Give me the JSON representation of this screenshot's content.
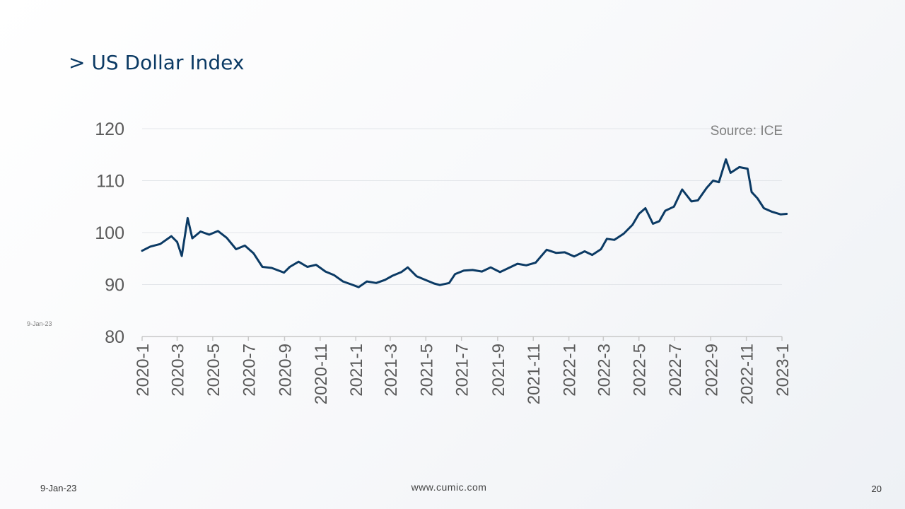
{
  "slide": {
    "title": "> US Dollar Index",
    "side_date": "9-Jan-23",
    "footer_date": "9-Jan-23",
    "footer_site": "www.cumic.com",
    "page_number": "20"
  },
  "chart_data": {
    "type": "line",
    "title": "",
    "xlabel": "",
    "ylabel": "",
    "source": "Source: ICE",
    "ylim": [
      80,
      120
    ],
    "yticks": [
      80,
      90,
      100,
      110,
      120
    ],
    "xticks": [
      "2020-1",
      "2020-3",
      "2020-5",
      "2020-7",
      "2020-9",
      "2020-11",
      "2021-1",
      "2021-3",
      "2021-5",
      "2021-7",
      "2021-9",
      "2021-11",
      "2022-1",
      "2022-3",
      "2022-5",
      "2022-7",
      "2022-9",
      "2022-11",
      "2023-1"
    ],
    "grid": true,
    "line_color": "#0b3a64",
    "series": [
      {
        "x": [
          "2020-01-01",
          "2020-01-15",
          "2020-02-01",
          "2020-02-20",
          "2020-03-01",
          "2020-03-09",
          "2020-03-19",
          "2020-03-27",
          "2020-04-10",
          "2020-04-25",
          "2020-05-10",
          "2020-05-25",
          "2020-06-10",
          "2020-06-25",
          "2020-07-10",
          "2020-07-25",
          "2020-08-10",
          "2020-08-31",
          "2020-09-10",
          "2020-09-25",
          "2020-10-10",
          "2020-10-25",
          "2020-11-10",
          "2020-11-25",
          "2020-12-10",
          "2020-12-25",
          "2021-01-06",
          "2021-01-20",
          "2021-02-05",
          "2021-02-20",
          "2021-03-05",
          "2021-03-20",
          "2021-03-31",
          "2021-04-15",
          "2021-04-30",
          "2021-05-15",
          "2021-05-25",
          "2021-06-10",
          "2021-06-20",
          "2021-07-05",
          "2021-07-20",
          "2021-08-05",
          "2021-08-20",
          "2021-09-05",
          "2021-09-20",
          "2021-10-05",
          "2021-10-20",
          "2021-11-05",
          "2021-11-24",
          "2021-12-10",
          "2021-12-25",
          "2022-01-10",
          "2022-01-28",
          "2022-02-10",
          "2022-02-25",
          "2022-03-07",
          "2022-03-20",
          "2022-04-05",
          "2022-04-20",
          "2022-05-01",
          "2022-05-12",
          "2022-05-25",
          "2022-06-05",
          "2022-06-15",
          "2022-06-30",
          "2022-07-14",
          "2022-07-30",
          "2022-08-10",
          "2022-08-25",
          "2022-09-05",
          "2022-09-15",
          "2022-09-27",
          "2022-10-05",
          "2022-10-20",
          "2022-11-03",
          "2022-11-10",
          "2022-11-20",
          "2022-12-01",
          "2022-12-15",
          "2022-12-30",
          "2023-01-09"
        ],
        "values": [
          96.5,
          97.3,
          97.8,
          99.3,
          98.2,
          95.5,
          102.8,
          98.9,
          100.2,
          99.6,
          100.3,
          99.0,
          96.8,
          97.5,
          96.0,
          93.4,
          93.2,
          92.3,
          93.4,
          94.4,
          93.4,
          93.8,
          92.5,
          91.8,
          90.6,
          90.0,
          89.5,
          90.6,
          90.3,
          90.9,
          91.7,
          92.4,
          93.3,
          91.6,
          90.9,
          90.2,
          89.9,
          90.3,
          92.0,
          92.7,
          92.8,
          92.5,
          93.3,
          92.4,
          93.2,
          94.0,
          93.7,
          94.2,
          96.7,
          96.1,
          96.2,
          95.4,
          96.4,
          95.7,
          96.8,
          98.8,
          98.6,
          99.8,
          101.5,
          103.6,
          104.7,
          101.7,
          102.2,
          104.2,
          105.0,
          108.3,
          106.0,
          106.2,
          108.6,
          110.0,
          109.7,
          114.1,
          111.5,
          112.6,
          112.3,
          107.8,
          106.6,
          104.7,
          104.0,
          103.5,
          103.6
        ]
      }
    ]
  }
}
